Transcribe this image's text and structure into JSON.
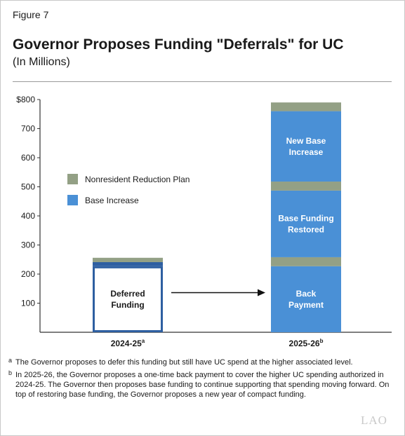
{
  "figure_label": "Figure 7",
  "title": "Governor Proposes Funding \"Deferrals\" for UC",
  "subtitle": "(In Millions)",
  "colors": {
    "base_increase": "#4a90d6",
    "nonresident": "#93a085",
    "deferred_fill": "#ffffff",
    "deferred_outline": "#2e5fa1"
  },
  "chart_data": {
    "type": "bar",
    "stacked": true,
    "categories": [
      "2024-25",
      "2025-26"
    ],
    "category_superscripts": [
      "a",
      "b"
    ],
    "ylim": [
      0,
      800
    ],
    "yticks": [
      100,
      200,
      300,
      400,
      500,
      600,
      700,
      800
    ],
    "ytick_labels": [
      "100",
      "200",
      "300",
      "400",
      "500",
      "600",
      "700",
      "$800"
    ],
    "grid": false,
    "legend": [
      {
        "label": "Nonresident Reduction Plan",
        "color": "#93a085"
      },
      {
        "label": "Base Increase",
        "color": "#4a90d6"
      }
    ],
    "bars": [
      {
        "category": "2024-25",
        "segments": [
          {
            "series": "Deferred (Base Increase)",
            "from": 0,
            "to": 227,
            "style": "deferred",
            "label": [
              "Deferred",
              "Funding"
            ]
          },
          {
            "series": "Base Increase",
            "from": 227,
            "to": 241,
            "style": "deferred",
            "label": []
          },
          {
            "series": "Nonresident Reduction Plan",
            "from": 241,
            "to": 256,
            "style": "nonresident",
            "label": []
          }
        ]
      },
      {
        "category": "2025-26",
        "segments": [
          {
            "series": "Base Increase",
            "from": 0,
            "to": 227,
            "style": "base",
            "label": [
              "Back",
              "Payment"
            ]
          },
          {
            "series": "Nonresident Reduction Plan",
            "from": 227,
            "to": 258,
            "style": "nonresident",
            "label": []
          },
          {
            "series": "Base Increase",
            "from": 258,
            "to": 487,
            "style": "base",
            "label": [
              "Base Funding",
              "Restored"
            ]
          },
          {
            "series": "Nonresident Reduction Plan",
            "from": 487,
            "to": 518,
            "style": "nonresident",
            "label": []
          },
          {
            "series": "Base Increase",
            "from": 518,
            "to": 760,
            "style": "base",
            "label": [
              "New Base",
              "Increase"
            ]
          },
          {
            "series": "Nonresident Reduction Plan",
            "from": 760,
            "to": 790,
            "style": "nonresident",
            "label": []
          }
        ]
      }
    ],
    "annotations": [
      {
        "type": "arrow",
        "from_category": "2024-25",
        "to_category": "2025-26",
        "y": 100
      }
    ]
  },
  "footnotes": [
    {
      "marker": "a",
      "text": "The Governor proposes to defer this funding but still have UC spend at the higher associated level."
    },
    {
      "marker": "b",
      "text": "In 2025-26, the Governor proposes a one-time back payment to cover the higher UC spending authorized in 2024-25. The Governor then proposes base funding to continue supporting that spending moving forward. On top of restoring base funding, the Governor proposes a new year of compact funding."
    }
  ],
  "logo_text": "LAO"
}
